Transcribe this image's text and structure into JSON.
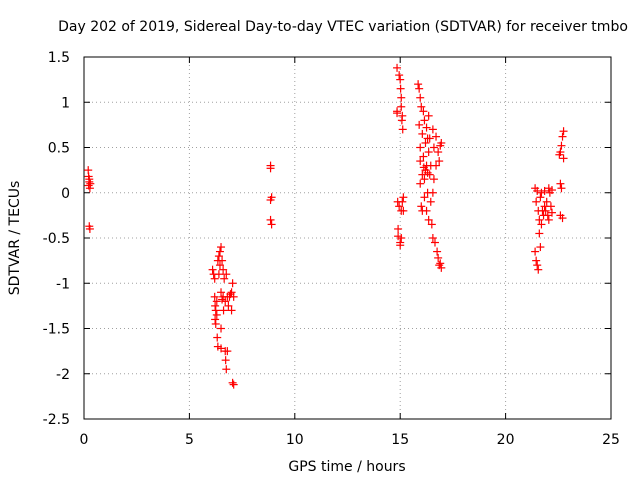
{
  "chart_data": {
    "type": "scatter",
    "title": "Day 202 of 2019, Sidereal Day-to-day VTEC variation (SDTVAR) for receiver tmbo",
    "xlabel": "GPS time / hours",
    "ylabel": "SDTVAR / TECUs",
    "xlim": [
      0,
      25
    ],
    "ylim": [
      -2.5,
      1.5
    ],
    "xticks": [
      0,
      5,
      10,
      15,
      20,
      25
    ],
    "yticks": [
      -2.5,
      -2,
      -1.5,
      -1,
      -0.5,
      0,
      0.5,
      1,
      1.5
    ],
    "xtick_labels": [
      "0",
      "5",
      "10",
      "15",
      "20",
      "25"
    ],
    "ytick_labels": [
      "-2.5",
      "-2",
      "-1.5",
      "-1",
      "-0.5",
      "0",
      "0.5",
      "1",
      "1.5"
    ],
    "grid": true,
    "marker": "+",
    "color": "#ff0000",
    "series": [
      {
        "name": "SDTVAR",
        "points": [
          [
            0.2,
            0.25
          ],
          [
            0.22,
            0.18
          ],
          [
            0.25,
            0.12
          ],
          [
            0.22,
            0.08
          ],
          [
            0.28,
            0.05
          ],
          [
            0.25,
            0.15
          ],
          [
            0.3,
            0.1
          ],
          [
            0.25,
            -0.37
          ],
          [
            0.28,
            -0.4
          ],
          [
            6.1,
            -0.85
          ],
          [
            6.15,
            -0.9
          ],
          [
            6.2,
            -0.95
          ],
          [
            6.2,
            -1.15
          ],
          [
            6.22,
            -1.25
          ],
          [
            6.25,
            -1.3
          ],
          [
            6.22,
            -1.4
          ],
          [
            6.25,
            -1.45
          ],
          [
            6.3,
            -1.2
          ],
          [
            6.3,
            -1.35
          ],
          [
            6.32,
            -1.6
          ],
          [
            6.35,
            -1.7
          ],
          [
            6.35,
            -0.75
          ],
          [
            6.4,
            -0.7
          ],
          [
            6.4,
            -0.9
          ],
          [
            6.45,
            -0.65
          ],
          [
            6.45,
            -0.8
          ],
          [
            6.5,
            -0.6
          ],
          [
            6.5,
            -1.1
          ],
          [
            6.5,
            -1.5
          ],
          [
            6.5,
            -1.72
          ],
          [
            6.55,
            -0.75
          ],
          [
            6.55,
            -1.18
          ],
          [
            6.6,
            -0.85
          ],
          [
            6.6,
            -1.15
          ],
          [
            6.62,
            -1.3
          ],
          [
            6.65,
            -0.95
          ],
          [
            6.7,
            -1.2
          ],
          [
            6.7,
            -1.75
          ],
          [
            6.72,
            -1.85
          ],
          [
            6.75,
            -0.9
          ],
          [
            6.75,
            -1.95
          ],
          [
            6.8,
            -1.15
          ],
          [
            6.8,
            -1.75
          ],
          [
            6.85,
            -1.25
          ],
          [
            6.9,
            -1.15
          ],
          [
            6.95,
            -1.12
          ],
          [
            7.0,
            -1.1
          ],
          [
            7.0,
            -1.3
          ],
          [
            7.05,
            -1.0
          ],
          [
            7.05,
            -2.1
          ],
          [
            7.1,
            -2.12
          ],
          [
            7.1,
            -1.15
          ],
          [
            8.85,
            0.3
          ],
          [
            8.85,
            0.27
          ],
          [
            8.9,
            -0.05
          ],
          [
            8.85,
            -0.08
          ],
          [
            8.85,
            -0.3
          ],
          [
            8.9,
            -0.35
          ],
          [
            14.85,
            1.38
          ],
          [
            14.85,
            0.88
          ],
          [
            14.85,
            0.9
          ],
          [
            14.88,
            -0.1
          ],
          [
            14.9,
            -0.4
          ],
          [
            14.9,
            -0.48
          ],
          [
            14.95,
            1.3
          ],
          [
            14.95,
            -0.15
          ],
          [
            15.0,
            1.25
          ],
          [
            15.0,
            -0.55
          ],
          [
            15.0,
            -0.58
          ],
          [
            15.02,
            1.15
          ],
          [
            15.05,
            1.05
          ],
          [
            15.05,
            0.95
          ],
          [
            15.05,
            -0.2
          ],
          [
            15.05,
            -0.5
          ],
          [
            15.08,
            0.8
          ],
          [
            15.1,
            0.85
          ],
          [
            15.1,
            -0.1
          ],
          [
            15.12,
            0.7
          ],
          [
            15.15,
            -0.05
          ],
          [
            15.15,
            -0.2
          ],
          [
            15.85,
            1.2
          ],
          [
            15.9,
            1.15
          ],
          [
            15.9,
            0.75
          ],
          [
            15.95,
            1.05
          ],
          [
            15.95,
            0.5
          ],
          [
            15.95,
            0.35
          ],
          [
            15.95,
            0.1
          ],
          [
            16.0,
            0.95
          ],
          [
            16.0,
            -0.15
          ],
          [
            16.05,
            0.65
          ],
          [
            16.05,
            0.2
          ],
          [
            16.05,
            -0.2
          ],
          [
            16.1,
            0.9
          ],
          [
            16.1,
            0.4
          ],
          [
            16.12,
            0.28
          ],
          [
            16.15,
            0.8
          ],
          [
            16.15,
            0.15
          ],
          [
            16.15,
            -0.05
          ],
          [
            16.2,
            0.55
          ],
          [
            16.2,
            0.25
          ],
          [
            16.25,
            0.72
          ],
          [
            16.25,
            0.3
          ],
          [
            16.25,
            -0.2
          ],
          [
            16.3,
            0.6
          ],
          [
            16.3,
            0.22
          ],
          [
            16.3,
            0.0
          ],
          [
            16.35,
            0.85
          ],
          [
            16.35,
            0.45
          ],
          [
            16.35,
            -0.3
          ],
          [
            16.4,
            0.6
          ],
          [
            16.4,
            0.2
          ],
          [
            16.45,
            0.3
          ],
          [
            16.45,
            -0.1
          ],
          [
            16.5,
            -0.35
          ],
          [
            16.55,
            0.7
          ],
          [
            16.55,
            0.0
          ],
          [
            16.55,
            -0.5
          ],
          [
            16.6,
            0.5
          ],
          [
            16.6,
            0.15
          ],
          [
            16.65,
            -0.55
          ],
          [
            16.7,
            0.62
          ],
          [
            16.7,
            0.3
          ],
          [
            16.75,
            -0.65
          ],
          [
            16.8,
            0.45
          ],
          [
            16.8,
            -0.72
          ],
          [
            16.85,
            0.35
          ],
          [
            16.85,
            -0.8
          ],
          [
            16.9,
            0.52
          ],
          [
            16.9,
            -0.78
          ],
          [
            16.95,
            0.55
          ],
          [
            16.95,
            -0.83
          ],
          [
            21.4,
            0.05
          ],
          [
            21.4,
            -0.65
          ],
          [
            21.45,
            -0.1
          ],
          [
            21.45,
            -0.75
          ],
          [
            21.5,
            0.02
          ],
          [
            21.5,
            -0.8
          ],
          [
            21.55,
            -0.2
          ],
          [
            21.55,
            -0.85
          ],
          [
            21.6,
            -0.3
          ],
          [
            21.6,
            -0.45
          ],
          [
            21.65,
            -0.05
          ],
          [
            21.65,
            -0.6
          ],
          [
            21.7,
            0.0
          ],
          [
            21.7,
            -0.35
          ],
          [
            21.75,
            -0.2
          ],
          [
            21.8,
            -0.25
          ],
          [
            21.85,
            0.02
          ],
          [
            21.85,
            -0.15
          ],
          [
            21.9,
            -0.2
          ],
          [
            21.95,
            -0.1
          ],
          [
            22.0,
            -0.25
          ],
          [
            22.05,
            0.05
          ],
          [
            22.05,
            -0.3
          ],
          [
            22.1,
            0.0
          ],
          [
            22.15,
            -0.15
          ],
          [
            22.2,
            0.03
          ],
          [
            22.2,
            -0.22
          ],
          [
            22.55,
            0.42
          ],
          [
            22.6,
            0.45
          ],
          [
            22.6,
            0.1
          ],
          [
            22.6,
            -0.25
          ],
          [
            22.65,
            0.52
          ],
          [
            22.65,
            0.05
          ],
          [
            22.7,
            0.62
          ],
          [
            22.7,
            -0.28
          ],
          [
            22.75,
            0.68
          ],
          [
            22.75,
            0.38
          ]
        ]
      }
    ]
  }
}
